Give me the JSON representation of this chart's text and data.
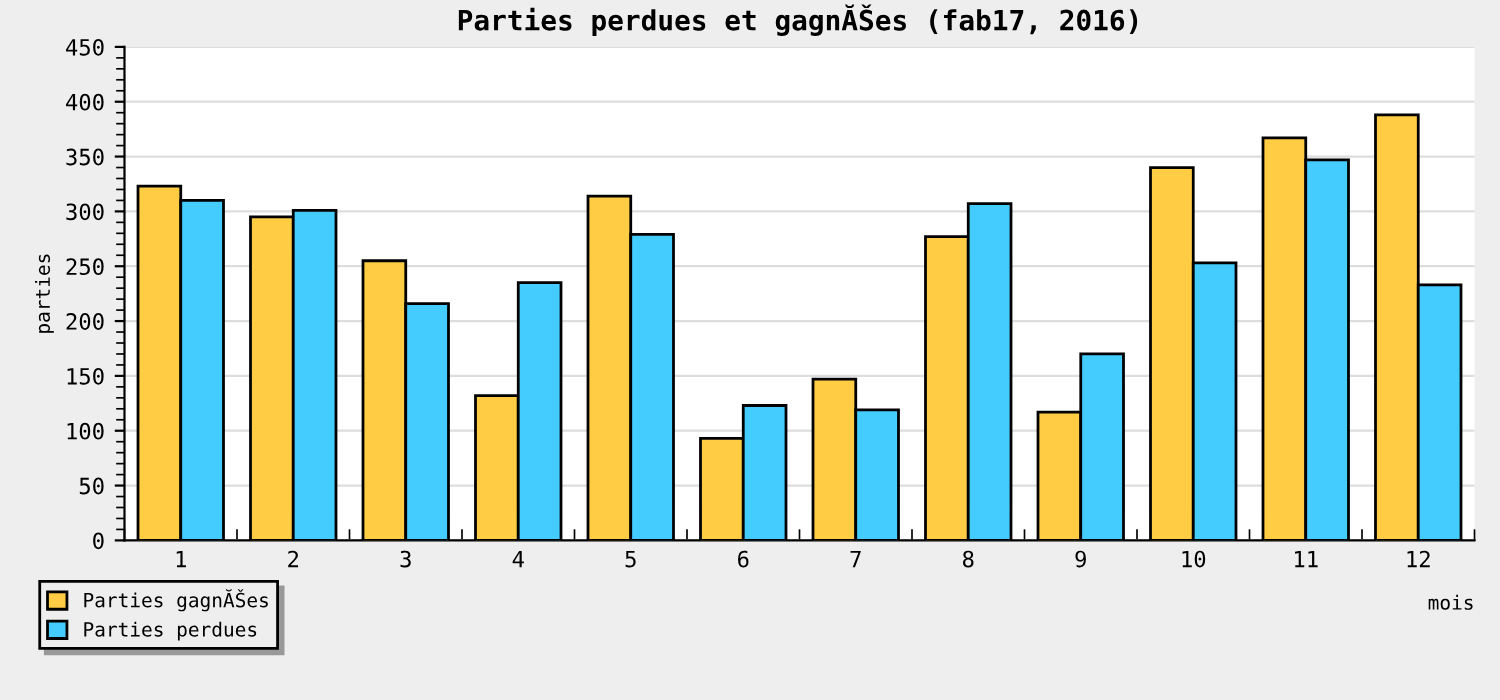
{
  "chart_data": {
    "type": "bar",
    "title": "Parties perdues et gagnĂŠes (fab17, 2016)",
    "xlabel": "mois",
    "ylabel": "parties",
    "categories": [
      "1",
      "2",
      "3",
      "4",
      "5",
      "6",
      "7",
      "8",
      "9",
      "10",
      "11",
      "12"
    ],
    "series": [
      {
        "name": "Parties gagnĂŠes",
        "color": "#ffcc44",
        "values": [
          323,
          295,
          255,
          132,
          314,
          93,
          147,
          277,
          117,
          340,
          367,
          388
        ]
      },
      {
        "name": "Parties perdues",
        "color": "#44ccff",
        "values": [
          310,
          301,
          216,
          235,
          279,
          123,
          119,
          307,
          170,
          253,
          347,
          233
        ]
      }
    ],
    "ylim": [
      0,
      450
    ],
    "yticks": [
      0,
      50,
      100,
      150,
      200,
      250,
      300,
      350,
      400,
      450
    ],
    "grid": "y",
    "legend": "bottom left"
  }
}
